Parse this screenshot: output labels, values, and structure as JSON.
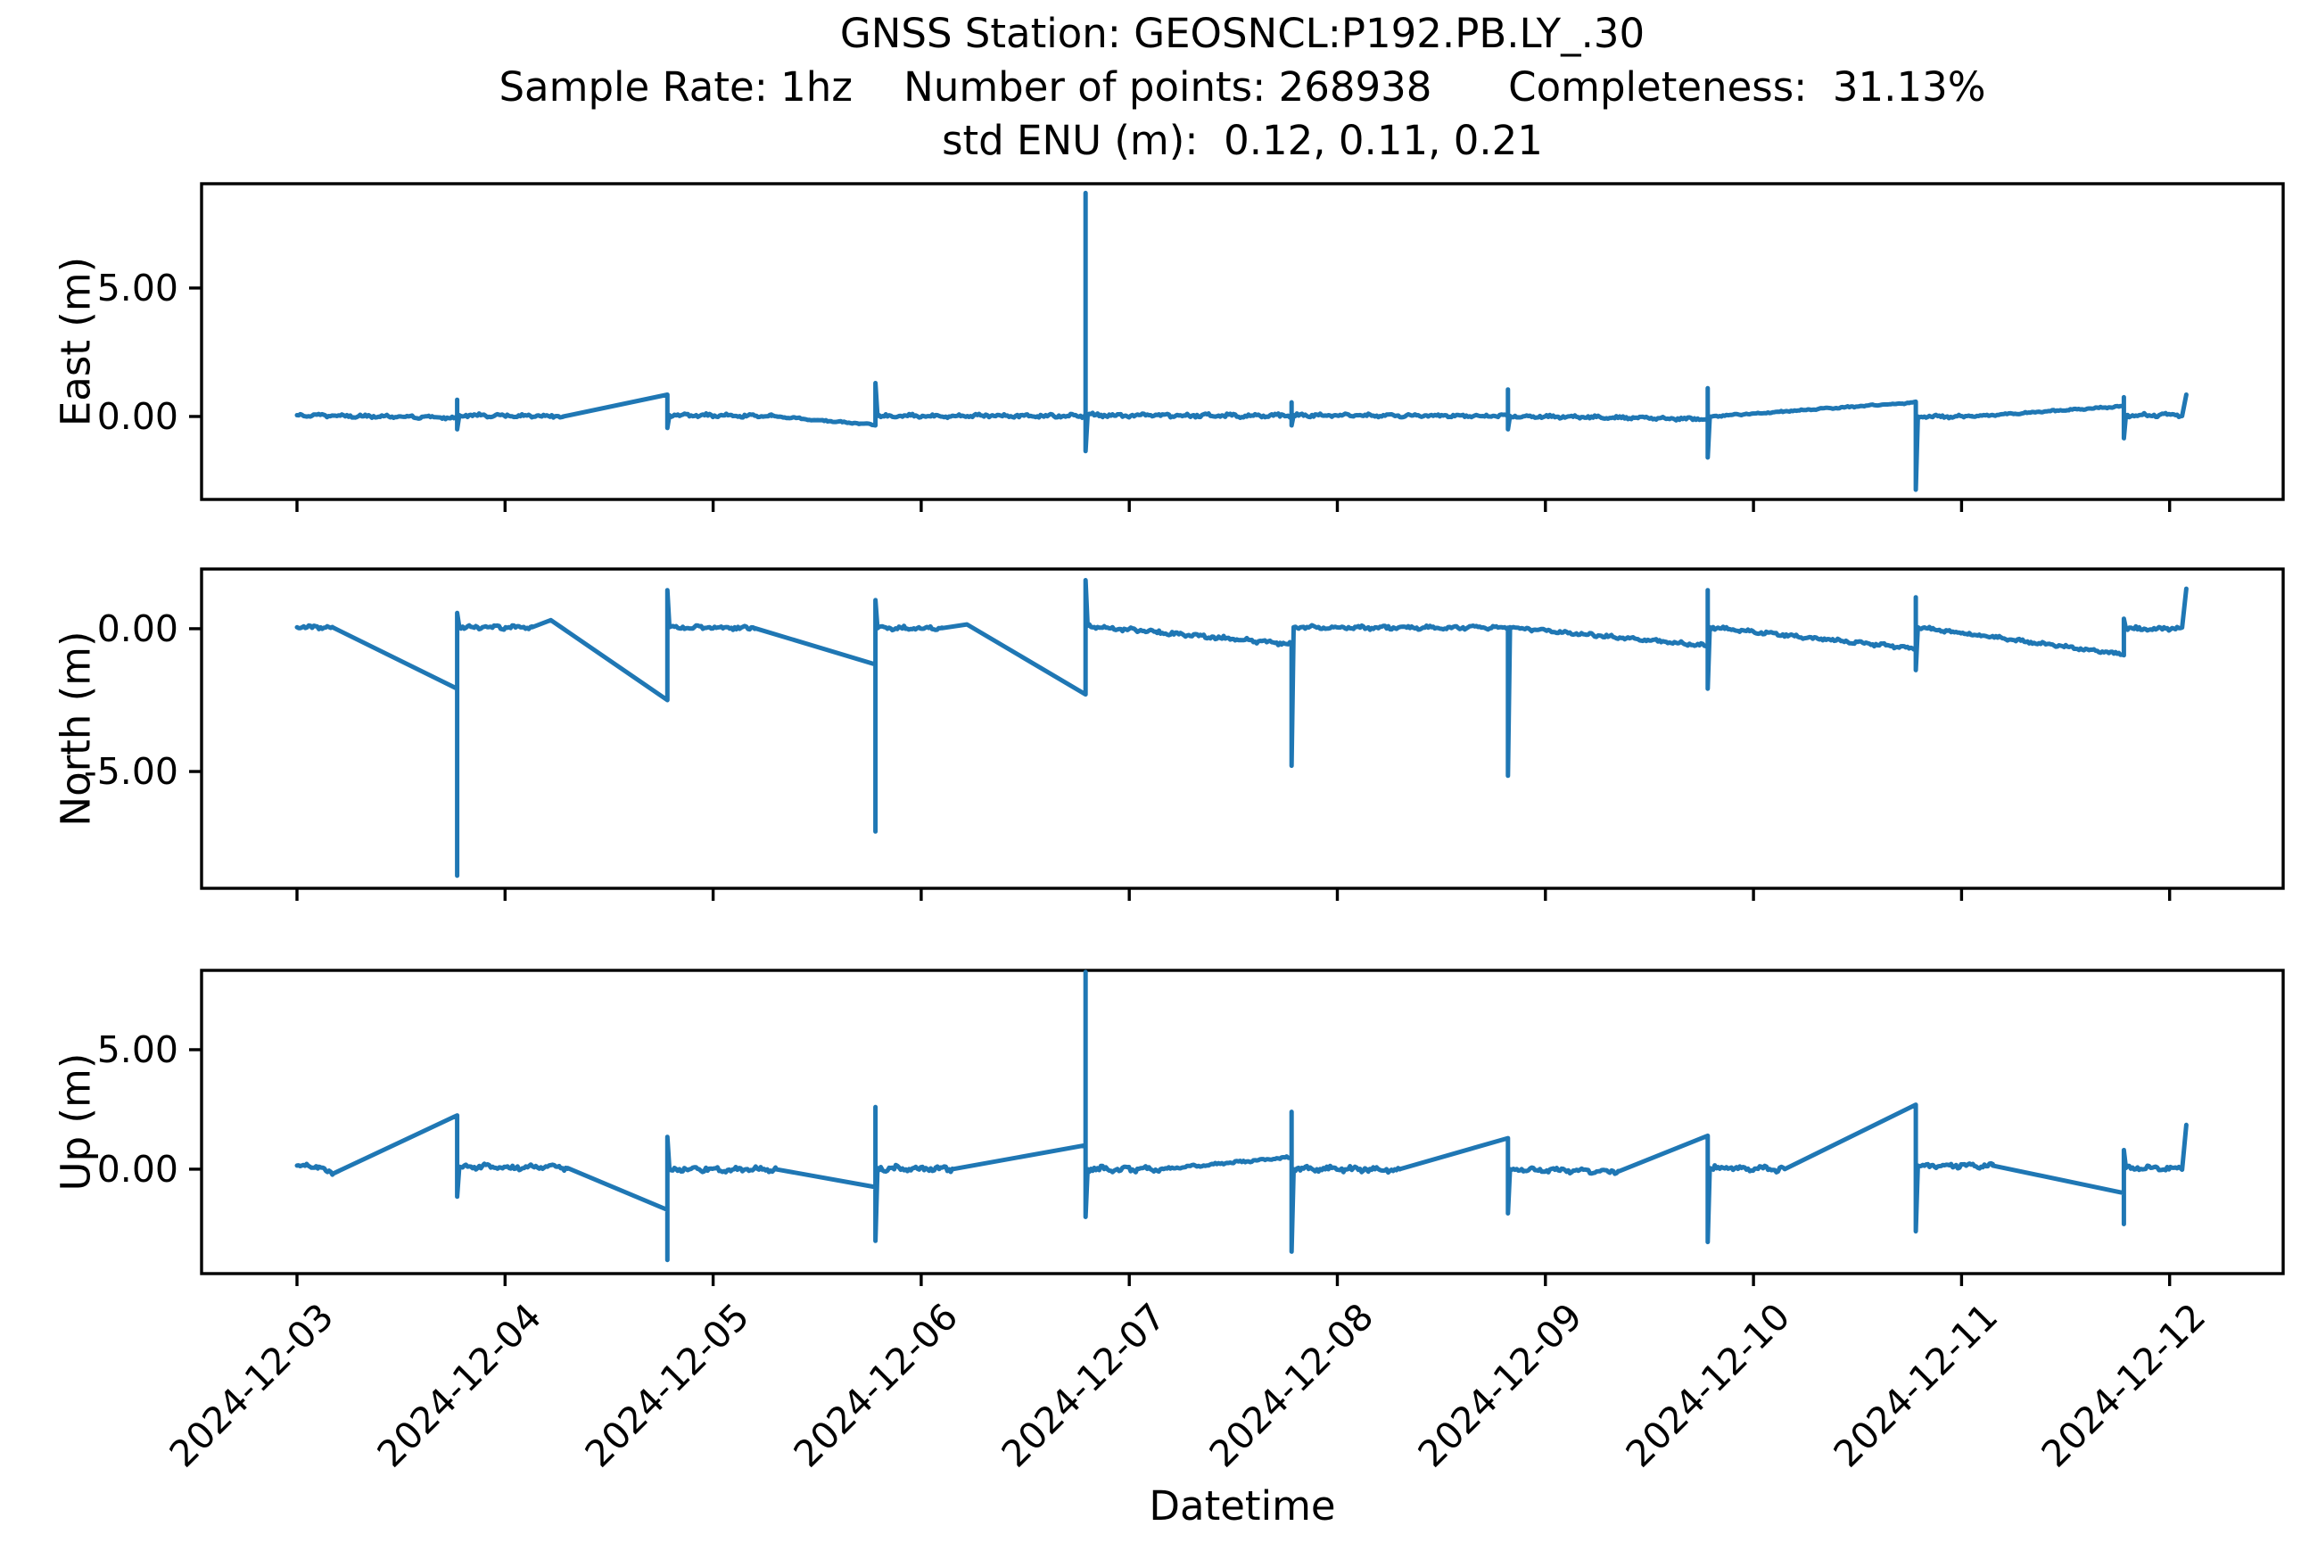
{
  "figure": {
    "title_line1": "GNSS Station: GEOSNCL:P192.PB.LY_.30",
    "title_line2": "Sample Rate: 1hz    Number of points: 268938      Completeness:  31.13%",
    "title_line3": "std ENU (m):  0.12, 0.11, 0.21",
    "xlabel": "Datetime"
  },
  "colors": {
    "line": "#1f77b4",
    "axis": "#000000",
    "text": "#000000",
    "background": "#ffffff"
  },
  "chart_data": {
    "type": "line",
    "title": "GNSS Station: GEOSNCL:P192.PB.LY_.30",
    "station": "GEOSNCL:P192.PB.LY_.30",
    "sample_rate": "1hz",
    "number_of_points": 268938,
    "completeness_percent": 31.13,
    "std_enu_m": {
      "east": 0.12,
      "north": 0.11,
      "up": 0.21
    },
    "xlabel": "Datetime",
    "grid": false,
    "legend": "none",
    "line_color": "#1f77b4",
    "x_tick_labels": [
      "2024-12-03",
      "2024-12-04",
      "2024-12-05",
      "2024-12-06",
      "2024-12-07",
      "2024-12-08",
      "2024-12-09",
      "2024-12-10",
      "2024-12-11",
      "2024-12-12"
    ],
    "x_tick_days": [
      0,
      1,
      2,
      3,
      4,
      5,
      6,
      7,
      8,
      9
    ],
    "x_range_days": [
      -0.46,
      9.55
    ],
    "segment_format": "['L',t0,v0,t1,v1,noise_amp] = line segment (t in days from 2024-12-03, v in meters, noise amplitude in meters); ['S',t,[extremes]] = vertical spike excursion at time t",
    "panels": [
      {
        "name": "east",
        "ylabel": "East (m)",
        "yticks": [
          0,
          5
        ],
        "ylim": [
          -3.23,
          9.06
        ],
        "segments": [
          [
            "L",
            0.0,
            0.05,
            0.4,
            0.0,
            0.06
          ],
          [
            "L",
            0.4,
            0.0,
            0.77,
            -0.05,
            0.06
          ],
          [
            "S",
            0.77,
            [
              0.65,
              -0.5
            ]
          ],
          [
            "L",
            0.78,
            0.05,
            1.28,
            0.0,
            0.07
          ],
          [
            "L",
            1.28,
            0.0,
            1.78,
            0.85,
            0
          ],
          [
            "S",
            1.78,
            [
              -0.45
            ]
          ],
          [
            "L",
            1.79,
            0.05,
            2.28,
            0.02,
            0.07
          ],
          [
            "L",
            2.28,
            0.02,
            2.78,
            -0.33,
            0.03
          ],
          [
            "S",
            2.78,
            [
              1.3
            ]
          ],
          [
            "L",
            2.79,
            0.02,
            3.79,
            0.03,
            0.07
          ],
          [
            "S",
            3.79,
            [
              8.7,
              -1.35
            ]
          ],
          [
            "L",
            3.8,
            0.05,
            4.78,
            0.03,
            0.08
          ],
          [
            "S",
            4.78,
            [
              0.55,
              -0.35
            ]
          ],
          [
            "L",
            4.79,
            0.05,
            5.82,
            0.02,
            0.06
          ],
          [
            "S",
            5.82,
            [
              1.05,
              -0.5
            ]
          ],
          [
            "L",
            5.83,
            0.02,
            6.78,
            -0.1,
            0.06
          ],
          [
            "S",
            6.78,
            [
              1.1,
              -1.6
            ]
          ],
          [
            "L",
            6.79,
            0.0,
            7.78,
            0.55,
            0.03
          ],
          [
            "S",
            7.78,
            [
              -2.85
            ]
          ],
          [
            "L",
            7.79,
            0.0,
            8.05,
            0.0,
            0.07
          ],
          [
            "L",
            8.05,
            0.0,
            8.78,
            0.4,
            0.03
          ],
          [
            "S",
            8.78,
            [
              0.75,
              -0.85
            ]
          ],
          [
            "L",
            8.79,
            0.05,
            9.06,
            0.05,
            0.07
          ],
          [
            "S",
            9.08,
            [
              0.85
            ]
          ]
        ]
      },
      {
        "name": "north",
        "ylabel": "North (m)",
        "yticks": [
          -5,
          0
        ],
        "ylim": [
          -9.09,
          2.09
        ],
        "segments": [
          [
            "L",
            0.0,
            0.05,
            0.17,
            0.05,
            0.06
          ],
          [
            "L",
            0.17,
            0.05,
            0.77,
            -2.1,
            0
          ],
          [
            "S",
            0.77,
            [
              -8.65,
              0.55
            ]
          ],
          [
            "L",
            0.78,
            0.05,
            1.13,
            0.05,
            0.07
          ],
          [
            "L",
            1.13,
            0.05,
            1.22,
            0.3,
            0
          ],
          [
            "L",
            1.22,
            0.3,
            1.78,
            -2.5,
            0
          ],
          [
            "S",
            1.78,
            [
              1.35
            ]
          ],
          [
            "L",
            1.79,
            0.05,
            2.2,
            0.02,
            0.07
          ],
          [
            "L",
            2.2,
            0.02,
            2.78,
            -1.25,
            0
          ],
          [
            "S",
            2.78,
            [
              -7.1,
              1.0
            ]
          ],
          [
            "L",
            2.79,
            0.02,
            3.1,
            0.02,
            0.07
          ],
          [
            "L",
            3.1,
            0.02,
            3.22,
            0.15,
            0
          ],
          [
            "L",
            3.22,
            0.15,
            3.79,
            -2.3,
            0
          ],
          [
            "S",
            3.79,
            [
              1.7
            ]
          ],
          [
            "L",
            3.8,
            0.1,
            4.78,
            -0.55,
            0.07
          ],
          [
            "S",
            4.78,
            [
              -4.8
            ]
          ],
          [
            "L",
            4.79,
            0.05,
            5.82,
            0.02,
            0.07
          ],
          [
            "S",
            5.82,
            [
              -5.15
            ]
          ],
          [
            "L",
            5.83,
            0.05,
            6.78,
            -0.6,
            0.06
          ],
          [
            "S",
            6.78,
            [
              1.35,
              -2.1
            ]
          ],
          [
            "L",
            6.79,
            0.05,
            7.78,
            -0.7,
            0.06
          ],
          [
            "S",
            7.78,
            [
              1.1,
              -1.45
            ]
          ],
          [
            "L",
            7.79,
            0.05,
            8.78,
            -0.9,
            0.06
          ],
          [
            "S",
            8.78,
            [
              0.35
            ]
          ],
          [
            "L",
            8.79,
            0.0,
            9.06,
            0.0,
            0.07
          ],
          [
            "S",
            9.08,
            [
              1.4
            ]
          ]
        ]
      },
      {
        "name": "up",
        "ylabel": "Up (m)",
        "yticks": [
          0,
          5
        ],
        "ylim": [
          -4.37,
          8.32
        ],
        "segments": [
          [
            "L",
            0.0,
            0.15,
            0.1,
            0.1,
            0.1
          ],
          [
            "L",
            0.1,
            0.1,
            0.17,
            -0.2,
            0.08
          ],
          [
            "L",
            0.17,
            -0.2,
            0.77,
            2.25,
            0
          ],
          [
            "S",
            0.77,
            [
              -1.15
            ]
          ],
          [
            "L",
            0.78,
            0.1,
            1.3,
            0.05,
            0.12
          ],
          [
            "L",
            1.3,
            0.05,
            1.78,
            -1.7,
            0
          ],
          [
            "S",
            1.78,
            [
              -3.8,
              1.35
            ]
          ],
          [
            "L",
            1.79,
            0.0,
            2.3,
            0.0,
            0.12
          ],
          [
            "L",
            2.3,
            0.0,
            2.78,
            -0.75,
            0
          ],
          [
            "S",
            2.78,
            [
              2.6,
              -3.0
            ]
          ],
          [
            "L",
            2.79,
            0.05,
            3.15,
            0.0,
            0.12
          ],
          [
            "L",
            3.15,
            0.0,
            3.79,
            1.0,
            0
          ],
          [
            "S",
            3.79,
            [
              8.25,
              -2.0
            ]
          ],
          [
            "L",
            3.8,
            0.0,
            4.15,
            0.0,
            0.12
          ],
          [
            "L",
            4.15,
            0.0,
            4.78,
            0.5,
            0.05
          ],
          [
            "S",
            4.78,
            [
              2.4,
              -3.45
            ]
          ],
          [
            "L",
            4.79,
            0.0,
            5.3,
            0.0,
            0.12
          ],
          [
            "L",
            5.3,
            0.0,
            5.82,
            1.3,
            0
          ],
          [
            "S",
            5.82,
            [
              -1.85
            ]
          ],
          [
            "L",
            5.83,
            0.0,
            6.35,
            -0.1,
            0.1
          ],
          [
            "L",
            6.35,
            -0.1,
            6.78,
            1.4,
            0
          ],
          [
            "S",
            6.78,
            [
              -3.05
            ]
          ],
          [
            "L",
            6.79,
            0.05,
            7.15,
            0.0,
            0.12
          ],
          [
            "L",
            7.15,
            0.0,
            7.78,
            2.7,
            0
          ],
          [
            "S",
            7.78,
            [
              -2.6
            ]
          ],
          [
            "L",
            7.79,
            0.15,
            8.15,
            0.15,
            0.1
          ],
          [
            "L",
            8.15,
            0.15,
            8.78,
            -1.0,
            0
          ],
          [
            "S",
            8.78,
            [
              -2.3,
              0.8
            ]
          ],
          [
            "L",
            8.79,
            0.05,
            9.06,
            0.05,
            0.1
          ],
          [
            "S",
            9.08,
            [
              1.85
            ]
          ]
        ]
      }
    ]
  }
}
